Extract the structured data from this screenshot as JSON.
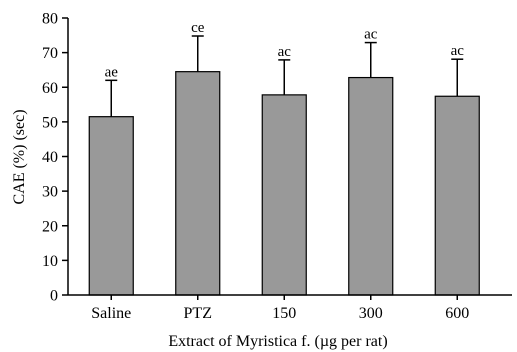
{
  "chart_data": {
    "type": "bar",
    "categories": [
      "Saline",
      "PTZ",
      "150",
      "300",
      "600"
    ],
    "values": [
      51.5,
      64.5,
      57.8,
      62.8,
      57.4
    ],
    "errors": [
      10.5,
      10.3,
      10.1,
      10.1,
      10.7
    ],
    "annotations": [
      "ae",
      "ce",
      "ac",
      "ac",
      "ac"
    ],
    "xlabel": "Extract of Myristica f. (µg per rat)",
    "ylabel": "CAE (%) (sec)",
    "ylim": [
      0,
      80
    ],
    "yticks": [
      0,
      10,
      20,
      30,
      40,
      50,
      60,
      70,
      80
    ],
    "grid": false,
    "colors": {
      "bar_fill": "#999999",
      "bar_stroke": "#000000",
      "axis": "#000000"
    }
  }
}
